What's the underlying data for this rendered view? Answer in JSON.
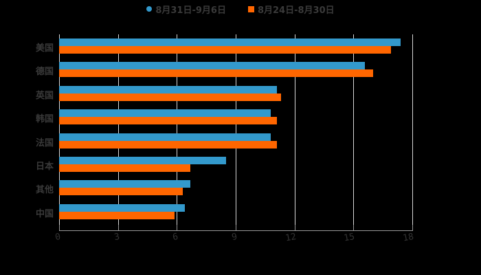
{
  "legend": {
    "series_a": {
      "label": "8月31日-9月6日",
      "color": "#3399cc",
      "marker": "circle"
    },
    "series_b": {
      "label": "8月24日-8月30日",
      "color": "#ff6600",
      "marker": "square"
    }
  },
  "axis": {
    "x_ticks": [
      "0",
      "3",
      "6",
      "9",
      "12",
      "15",
      "18"
    ]
  },
  "categories_display": [
    "美国",
    "德国",
    "英国",
    "韩国",
    "法国",
    "日本",
    "其他",
    "中国"
  ],
  "chart_data": {
    "type": "bar",
    "orientation": "horizontal",
    "title": "",
    "xlabel": "",
    "ylabel": "",
    "categories": [
      "美国",
      "德国",
      "英国",
      "韩国",
      "法国",
      "日本",
      "其他",
      "中国"
    ],
    "series": [
      {
        "name": "8月31日-9月6日",
        "color": "#3399cc",
        "values": [
          17.4,
          15.6,
          11.1,
          10.8,
          10.8,
          8.5,
          6.7,
          6.4
        ]
      },
      {
        "name": "8月24日-8月30日",
        "color": "#ff6600",
        "values": [
          16.9,
          16.0,
          11.3,
          11.1,
          11.1,
          6.7,
          6.3,
          5.9
        ]
      }
    ],
    "xlim": [
      0,
      18
    ],
    "x_ticks": [
      0,
      3,
      6,
      9,
      12,
      15,
      18
    ],
    "grid": "vertical",
    "legend_position": "top"
  }
}
